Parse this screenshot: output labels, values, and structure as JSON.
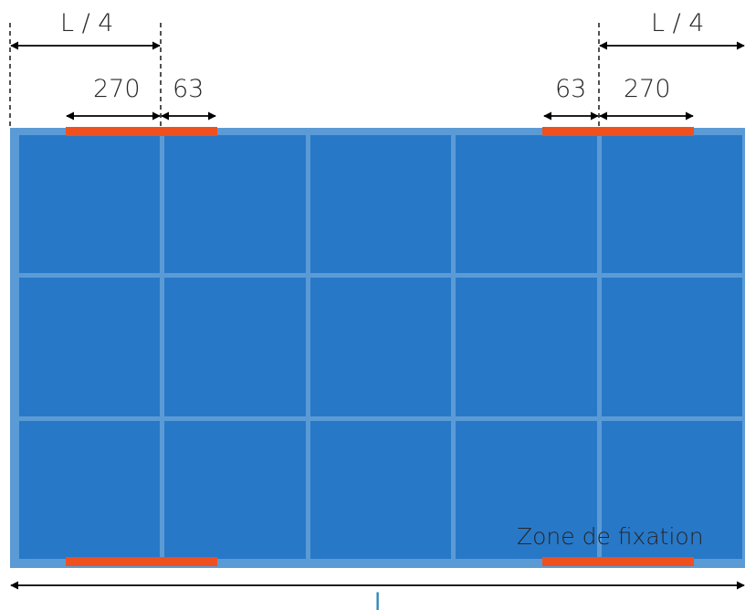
{
  "diagram": {
    "left_quarter_label": "L / 4",
    "right_quarter_label": "L / 4",
    "left_fixing_length": "270",
    "left_offset": "63",
    "right_offset": "63",
    "right_fixing_length": "270",
    "zone_label": "Zone de fixation",
    "total_length_label": "l"
  },
  "colors": {
    "panel_fill": "#2878c8",
    "panel_frame": "#5b9bd5",
    "fixing_zone": "#f0501e",
    "arrows": "#000000",
    "length_label": "#2e86b8"
  },
  "panel_grid": {
    "columns": 5,
    "rows": 3
  }
}
